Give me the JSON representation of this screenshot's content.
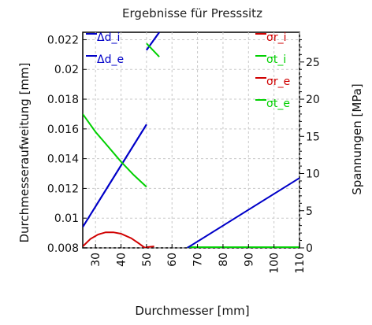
{
  "chart_data": {
    "type": "line",
    "title": "Ergebnisse für Presssitz",
    "xlabel": "Durchmesser [mm]",
    "ylabel_left": "Durchmesseraufweitung [mm]",
    "ylabel_right": "Spannungen [MPa]",
    "xlim": [
      25,
      110
    ],
    "ylim_left": [
      0.008,
      0.0225
    ],
    "ylim_right": [
      0,
      29
    ],
    "x_ticks": [
      30,
      40,
      50,
      60,
      70,
      80,
      90,
      100,
      110
    ],
    "y_left_ticks": [
      0.008,
      0.01,
      0.012,
      0.014,
      0.016,
      0.018,
      0.02,
      0.022
    ],
    "y_right_ticks": [
      0,
      5,
      10,
      15,
      20,
      25
    ],
    "grid": true,
    "legend_left_position": "top-left",
    "legend_right_position": "top-right",
    "series": [
      {
        "name": "Δd_i",
        "axis": "left",
        "color": "#0000c8",
        "segments": [
          [
            [
              25,
              0.0094
            ],
            [
              50,
              0.0163
            ]
          ],
          [
            [
              50,
              0.0213
            ],
            [
              55,
              0.0225
            ]
          ]
        ]
      },
      {
        "name": "Δd_e",
        "axis": "left",
        "color": "#0000c8",
        "segments": [
          [
            [
              25,
              0.0094
            ],
            [
              50,
              0.0163
            ]
          ],
          [
            [
              50,
              0.0213
            ],
            [
              55,
              0.0225
            ]
          ]
        ]
      },
      {
        "name": "σr_i",
        "axis": "right",
        "color": "#d00000",
        "segments": [
          [
            [
              25,
              0.2
            ],
            [
              28,
              1.2
            ],
            [
              31,
              1.8
            ],
            [
              34,
              2.1
            ],
            [
              37,
              2.1
            ],
            [
              40,
              1.9
            ],
            [
              44,
              1.3
            ],
            [
              47,
              0.6
            ],
            [
              49,
              0.1
            ],
            [
              50,
              0
            ]
          ],
          [
            [
              50,
              0.1
            ],
            [
              53,
              0.2
            ]
          ]
        ]
      },
      {
        "name": "σt_i",
        "axis": "right",
        "color": "#00d000",
        "segments": [
          [
            [
              25,
              18
            ],
            [
              30,
              15.6
            ],
            [
              35,
              13.6
            ],
            [
              40,
              11.6
            ],
            [
              45,
              9.8
            ],
            [
              50,
              8.2
            ]
          ],
          [
            [
              50,
              27.5
            ],
            [
              55,
              25.7
            ]
          ]
        ]
      },
      {
        "name": "σr_e",
        "axis": "right",
        "color": "#d00000",
        "segments": [
          [
            [
              66,
              0
            ],
            [
              110,
              0
            ]
          ]
        ]
      },
      {
        "name": "σt_e",
        "axis": "right",
        "color": "#00d000",
        "segments": [
          [
            [
              66,
              0.1
            ],
            [
              110,
              0.1
            ]
          ]
        ]
      },
      {
        "name": "",
        "axis": "left",
        "color": "#0000c8",
        "segments": [
          [
            [
              66,
              0.008
            ],
            [
              110,
              0.0127
            ]
          ]
        ]
      }
    ]
  }
}
